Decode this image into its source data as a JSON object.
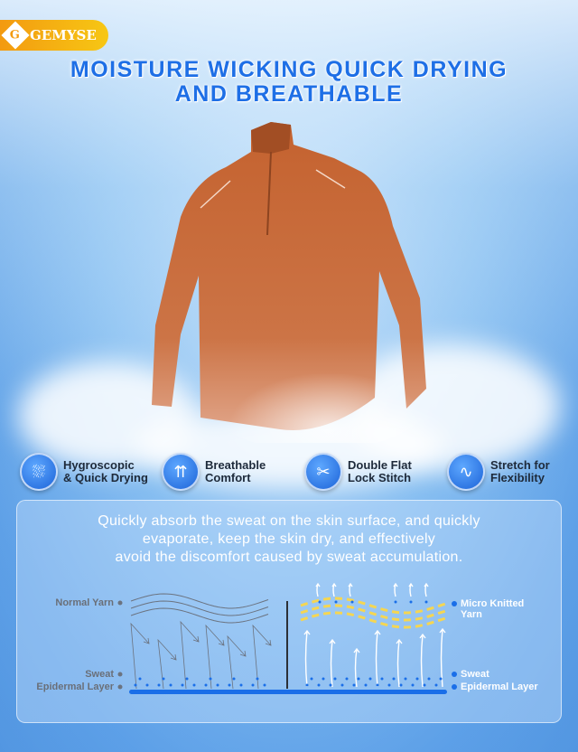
{
  "brand": {
    "name": "GEMYSE",
    "logo_letter": "G",
    "color": "#f39a10"
  },
  "title": {
    "line1": "MOISTURE WICKING QUICK DRYING",
    "line2": "AND BREATHABLE",
    "color": "#1e6fe6"
  },
  "product": {
    "color": "#c8683a"
  },
  "features": [
    {
      "icon": "sweat-absorb-icon",
      "line1": "Hygroscopic",
      "line2": "& Quick Drying"
    },
    {
      "icon": "breathable-icon",
      "line1": "Breathable",
      "line2": "Comfort"
    },
    {
      "icon": "stitch-icon",
      "line1": "Double Flat",
      "line2": "Lock Stitch"
    },
    {
      "icon": "stretch-wave-icon",
      "line1": "Stretch for",
      "line2": "Flexibility"
    }
  ],
  "description": {
    "line1": "Quickly absorb the sweat on the skin surface, and quickly",
    "line2": "evaporate, keep the skin dry, and effectively",
    "line3": "avoid the discomfort caused by sweat accumulation."
  },
  "diagram": {
    "left": {
      "yarn": "Normal Yarn",
      "sweat": "Sweat",
      "layer": "Epidermal Layer"
    },
    "right": {
      "yarn_line1": "Micro Knitted",
      "yarn_line2": "Yarn",
      "sweat": "Sweat",
      "layer": "Epidermal Layer"
    },
    "colors": {
      "skin": "#1a6ee8",
      "sweat": "#1a6ee8",
      "micro_yarn": "#f5d652",
      "normal_yarn": "#6b7380"
    }
  }
}
